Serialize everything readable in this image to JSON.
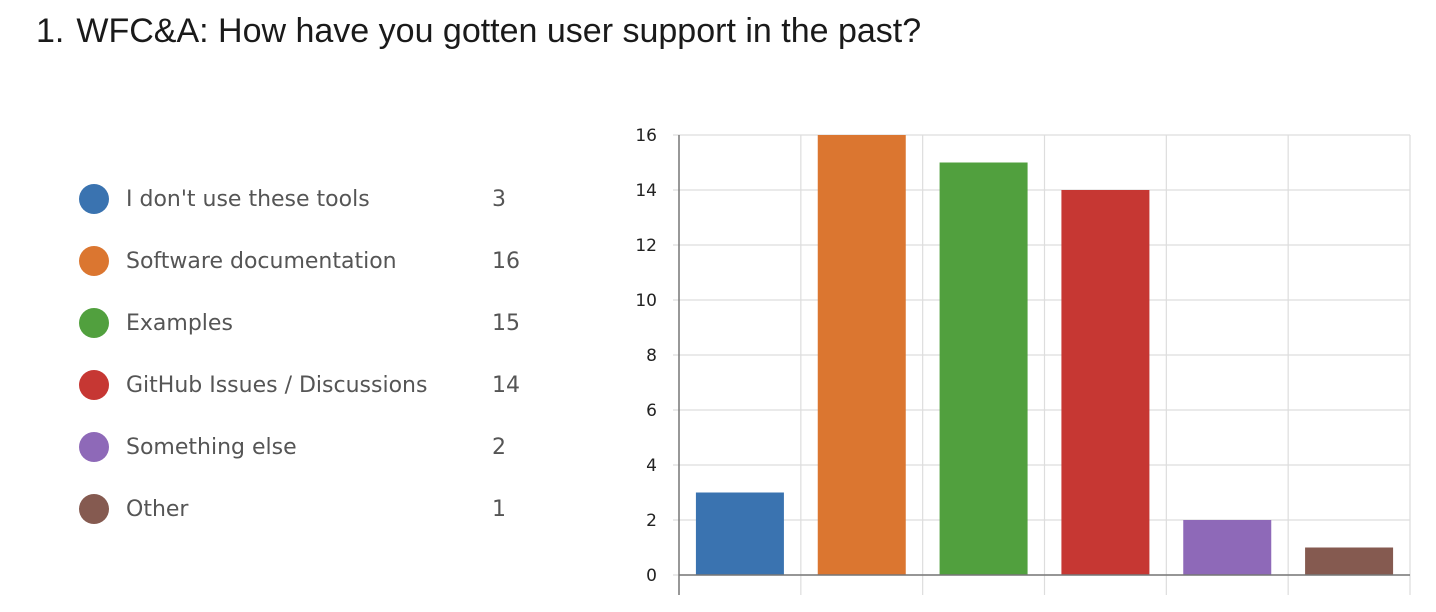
{
  "question": {
    "number": "1.",
    "title": "WFC&A: How have you gotten user support in the past?"
  },
  "legend": [
    {
      "label": "I don't use these tools",
      "count": "3",
      "color": "#3a73b0"
    },
    {
      "label": "Software documentation",
      "count": "16",
      "color": "#db7630"
    },
    {
      "label": "Examples",
      "count": "15",
      "color": "#51a03e"
    },
    {
      "label": "GitHub Issues / Discussions",
      "count": "14",
      "color": "#c63733"
    },
    {
      "label": "Something else",
      "count": "2",
      "color": "#8e69b8"
    },
    {
      "label": "Other",
      "count": "1",
      "color": "#855a50"
    }
  ],
  "chart_data": {
    "type": "bar",
    "categories": [
      "I don't use these tools",
      "Software documentation",
      "Examples",
      "GitHub Issues / Discussions",
      "Something else",
      "Other"
    ],
    "values": [
      3,
      16,
      15,
      14,
      2,
      1
    ],
    "colors": [
      "#3a73b0",
      "#db7630",
      "#51a03e",
      "#c63733",
      "#8e69b8",
      "#855a50"
    ],
    "ylim": [
      0,
      16
    ],
    "yticks": [
      0,
      2,
      4,
      6,
      8,
      10,
      12,
      14,
      16
    ],
    "grid": true,
    "legend_position": "left"
  }
}
